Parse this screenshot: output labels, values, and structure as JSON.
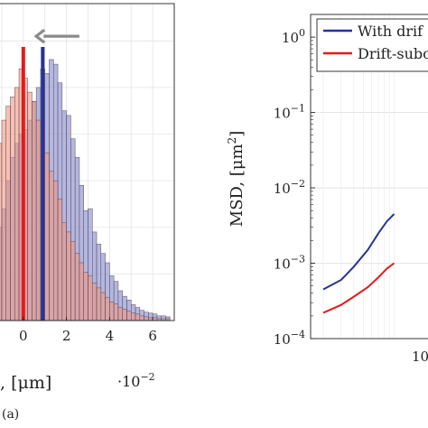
{
  "panel_a": {
    "label": "(a)",
    "xlabel": ", [μm]",
    "x_multiplier_base": "·10",
    "x_multiplier_exp": "−2"
  },
  "panel_b": {
    "ylabel": "MSD, [μm",
    "ylabel_exp": "2",
    "ylabel_close": "]",
    "x_tick_label_base": "10"
  },
  "chart_data": [
    {
      "type": "bar",
      "subtype": "histogram-overlay",
      "x_unit_multiplier": 0.01,
      "xlim": [
        -1.5,
        7
      ],
      "ylim": [
        0,
        340
      ],
      "x_ticks": [
        0,
        2,
        4,
        6
      ],
      "x_tick_labels": [
        "0",
        "2",
        "4",
        "6"
      ],
      "bin_width": 0.2,
      "grid": true,
      "series": [
        {
          "color": "#9b9fd6",
          "bin_starts": [
            -1.4,
            -1.2,
            -1.0,
            -0.8,
            -0.6,
            -0.4,
            -0.2,
            0.0,
            0.2,
            0.4,
            0.6,
            0.8,
            1.0,
            1.2,
            1.4,
            1.6,
            1.8,
            2.0,
            2.2,
            2.4,
            2.6,
            2.8,
            3.0,
            3.2,
            3.4,
            3.6,
            3.8,
            4.0,
            4.2,
            4.4,
            4.6,
            4.8,
            5.0,
            5.2,
            5.4,
            5.6,
            5.8,
            6.0,
            6.2,
            6.4,
            6.6
          ],
          "values": [
            80,
            100,
            120,
            150,
            175,
            190,
            200,
            205,
            215,
            235,
            250,
            270,
            265,
            280,
            275,
            255,
            225,
            220,
            195,
            175,
            145,
            118,
            120,
            95,
            82,
            72,
            62,
            48,
            42,
            32,
            26,
            22,
            17,
            14,
            11,
            9,
            8,
            7,
            5,
            5,
            4
          ]
        },
        {
          "color": "#f2967f",
          "bin_starts": [
            -1.4,
            -1.2,
            -1.0,
            -0.8,
            -0.6,
            -0.4,
            -0.2,
            0.0,
            0.2,
            0.4,
            0.6,
            0.8,
            1.0,
            1.2,
            1.4,
            1.6,
            1.8,
            2.0,
            2.2,
            2.4,
            2.6,
            2.8,
            3.0,
            3.2,
            3.4,
            3.6,
            3.8,
            4.0,
            4.2,
            4.4,
            4.6,
            4.8,
            5.0,
            5.2,
            5.4,
            5.6,
            5.8,
            6.0,
            6.2,
            6.4,
            6.6
          ],
          "values": [
            160,
            190,
            215,
            230,
            240,
            250,
            270,
            260,
            245,
            235,
            215,
            195,
            180,
            160,
            150,
            130,
            105,
            95,
            85,
            72,
            62,
            52,
            48,
            40,
            35,
            30,
            25,
            20,
            18,
            14,
            12,
            10,
            8,
            7,
            5,
            4,
            3,
            3,
            2,
            2,
            2
          ]
        }
      ],
      "vertical_lines": [
        {
          "x": 0.0,
          "color": "#e31a1c"
        },
        {
          "x": 0.9,
          "color": "#253494"
        }
      ],
      "arrow": {
        "from_x": 2.6,
        "to_x": 0.6,
        "y": 305,
        "color": "#8a8a8a"
      }
    },
    {
      "type": "line",
      "x_scale": "log",
      "y_scale": "log",
      "xlim": [
        0.15,
        3
      ],
      "ylim": [
        0.0001,
        2
      ],
      "y_ticks": [
        0.0001,
        0.001,
        0.01,
        0.1,
        1
      ],
      "y_tick_labels": [
        {
          "base": "10",
          "exp": "−4"
        },
        {
          "base": "10",
          "exp": "−3"
        },
        {
          "base": "10",
          "exp": "−2"
        },
        {
          "base": "10",
          "exp": "−1"
        },
        {
          "base": "10",
          "exp": "0"
        }
      ],
      "grid": true,
      "legend_placement": "top-right",
      "series": [
        {
          "name": "With drif",
          "color": "#253494",
          "x": [
            0.2,
            0.3,
            0.4,
            0.55,
            0.7,
            0.85,
            1.0
          ],
          "y": [
            0.00045,
            0.0006,
            0.0009,
            0.0015,
            0.0025,
            0.0036,
            0.0045
          ]
        },
        {
          "name": "Drift-subo",
          "color": "#e31a1c",
          "x": [
            0.2,
            0.3,
            0.4,
            0.55,
            0.7,
            0.85,
            1.0
          ],
          "y": [
            0.00022,
            0.00028,
            0.00036,
            0.00048,
            0.00065,
            0.00085,
            0.001
          ]
        }
      ]
    }
  ]
}
